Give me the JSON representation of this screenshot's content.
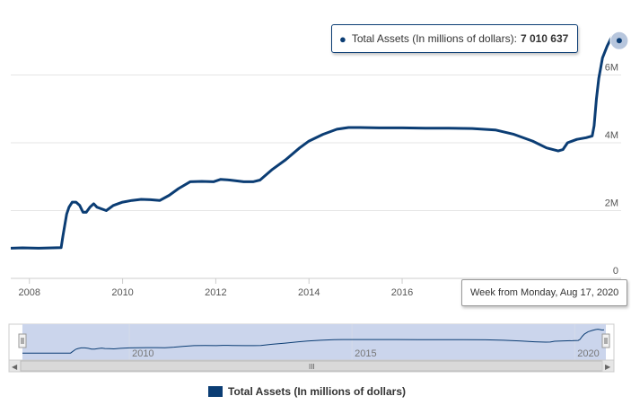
{
  "chart_data": {
    "type": "line",
    "title": "",
    "xlabel": "",
    "ylabel": "",
    "x_ticks": [
      "2008",
      "2010",
      "2012",
      "2014",
      "2016"
    ],
    "y_ticks": [
      "0",
      "2M",
      "4M",
      "6M"
    ],
    "xlim": [
      2007.6,
      2020.7
    ],
    "ylim": [
      0,
      8000000
    ],
    "series": [
      {
        "name": "Total Assets (In millions of dollars)",
        "color": "#0b3d74",
        "points": [
          [
            2007.6,
            890000
          ],
          [
            2007.85,
            900000
          ],
          [
            2008.2,
            890000
          ],
          [
            2008.5,
            900000
          ],
          [
            2008.68,
            905000
          ],
          [
            2008.72,
            1250000
          ],
          [
            2008.8,
            1900000
          ],
          [
            2008.85,
            2100000
          ],
          [
            2008.92,
            2250000
          ],
          [
            2009.0,
            2250000
          ],
          [
            2009.08,
            2150000
          ],
          [
            2009.15,
            1950000
          ],
          [
            2009.22,
            1950000
          ],
          [
            2009.3,
            2100000
          ],
          [
            2009.38,
            2200000
          ],
          [
            2009.45,
            2100000
          ],
          [
            2009.55,
            2050000
          ],
          [
            2009.65,
            2000000
          ],
          [
            2009.8,
            2150000
          ],
          [
            2010.0,
            2250000
          ],
          [
            2010.2,
            2300000
          ],
          [
            2010.4,
            2330000
          ],
          [
            2010.6,
            2320000
          ],
          [
            2010.8,
            2300000
          ],
          [
            2011.0,
            2450000
          ],
          [
            2011.2,
            2650000
          ],
          [
            2011.45,
            2850000
          ],
          [
            2011.7,
            2860000
          ],
          [
            2011.95,
            2850000
          ],
          [
            2012.1,
            2920000
          ],
          [
            2012.3,
            2900000
          ],
          [
            2012.6,
            2850000
          ],
          [
            2012.8,
            2850000
          ],
          [
            2012.95,
            2900000
          ],
          [
            2013.2,
            3200000
          ],
          [
            2013.5,
            3500000
          ],
          [
            2013.8,
            3850000
          ],
          [
            2014.0,
            4050000
          ],
          [
            2014.3,
            4250000
          ],
          [
            2014.6,
            4400000
          ],
          [
            2014.85,
            4450000
          ],
          [
            2015.1,
            4450000
          ],
          [
            2015.5,
            4440000
          ],
          [
            2016.0,
            4440000
          ],
          [
            2016.5,
            4430000
          ],
          [
            2017.0,
            4430000
          ],
          [
            2017.5,
            4420000
          ],
          [
            2018.0,
            4380000
          ],
          [
            2018.4,
            4250000
          ],
          [
            2018.8,
            4050000
          ],
          [
            2019.1,
            3850000
          ],
          [
            2019.35,
            3760000
          ],
          [
            2019.45,
            3800000
          ],
          [
            2019.55,
            4000000
          ],
          [
            2019.75,
            4100000
          ],
          [
            2019.95,
            4150000
          ],
          [
            2020.08,
            4200000
          ],
          [
            2020.12,
            4500000
          ],
          [
            2020.17,
            5300000
          ],
          [
            2020.22,
            5900000
          ],
          [
            2020.3,
            6500000
          ],
          [
            2020.4,
            6850000
          ],
          [
            2020.47,
            7050000
          ],
          [
            2020.52,
            7150000
          ],
          [
            2020.57,
            7050000
          ],
          [
            2020.62,
            6950000
          ],
          [
            2020.66,
            7010637
          ]
        ]
      }
    ],
    "legend": "bottom-center"
  },
  "tooltip": {
    "series_label": "Total Assets (In millions of dollars):",
    "value": "7 010 637"
  },
  "crosshair_label": "Week from Monday, Aug 17, 2020",
  "legend": {
    "label": "Total Assets (In millions of dollars)"
  },
  "navigator": {
    "ticks": [
      "2010",
      "2015",
      "2020"
    ],
    "scroll_handle_glyph": "III",
    "left_arrow": "◀",
    "right_arrow": "▶"
  }
}
